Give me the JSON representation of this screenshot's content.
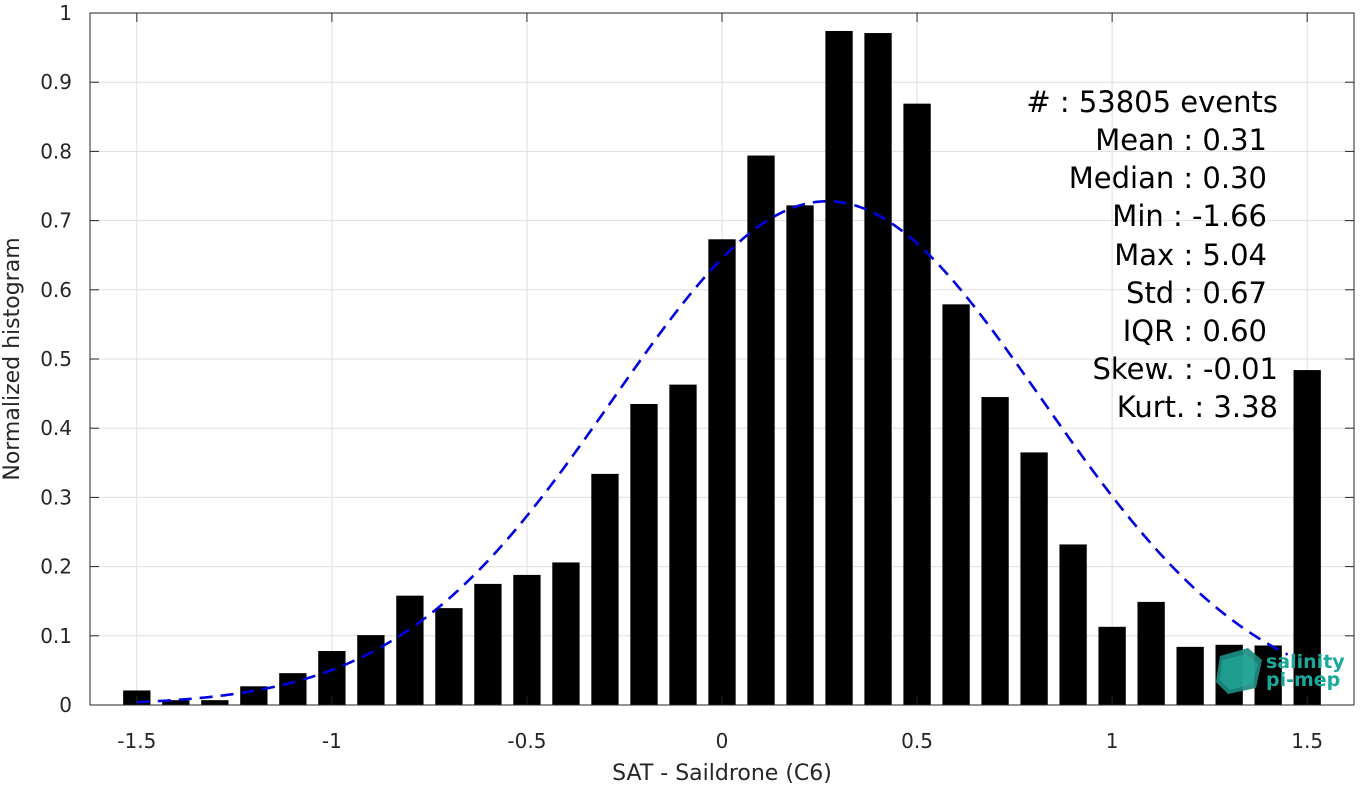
{
  "chart_data": {
    "type": "bar",
    "xlabel": "SAT - Saildrone (C6)",
    "ylabel": "Normalized histogram",
    "xlim": [
      -1.62,
      1.62
    ],
    "ylim": [
      0,
      1
    ],
    "xticks": [
      -1.5,
      -1,
      -0.5,
      0,
      0.5,
      1,
      1.5
    ],
    "xtick_labels": [
      "-1.5",
      "-1",
      "-0.5",
      "0",
      "0.5",
      "1",
      "1.5"
    ],
    "yticks": [
      0,
      0.1,
      0.2,
      0.3,
      0.4,
      0.5,
      0.6,
      0.7,
      0.8,
      0.9,
      1
    ],
    "ytick_labels": [
      "0",
      "0.1",
      "0.2",
      "0.3",
      "0.4",
      "0.5",
      "0.6",
      "0.7",
      "0.8",
      "0.9",
      "1"
    ],
    "grid": true,
    "bar_width": 0.07,
    "bar_color": "#000000",
    "x": [
      -1.5,
      -1.4,
      -1.3,
      -1.2,
      -1.1,
      -1.0,
      -0.9,
      -0.8,
      -0.7,
      -0.6,
      -0.5,
      -0.4,
      -0.3,
      -0.2,
      -0.1,
      0.0,
      0.1,
      0.2,
      0.3,
      0.4,
      0.5,
      0.6,
      0.7,
      0.8,
      0.9,
      1.0,
      1.1,
      1.2,
      1.3,
      1.4,
      1.5
    ],
    "values": [
      0.021,
      0.007,
      0.007,
      0.027,
      0.046,
      0.078,
      0.101,
      0.158,
      0.14,
      0.175,
      0.188,
      0.206,
      0.334,
      0.435,
      0.463,
      0.673,
      0.794,
      0.722,
      0.974,
      0.971,
      0.869,
      0.579,
      0.445,
      0.365,
      0.232,
      0.113,
      0.149,
      0.084,
      0.087,
      0.086,
      0.484
    ],
    "fit_curve": {
      "style": "dashed",
      "color": "#0000e0",
      "mean": 0.27,
      "std": 0.55,
      "peak": 0.728,
      "x_range": [
        -1.5,
        1.45
      ]
    },
    "annotations": [
      "#  : 53805 events",
      "Mean : 0.31",
      "Median : 0.30",
      "Min : -1.66",
      "Max : 5.04",
      "Std : 0.67",
      "IQR : 0.60",
      "Skew. : -0.01",
      "Kurt. : 3.38"
    ]
  },
  "logo": {
    "line1": "salinity",
    "line2": "pi-mep",
    "color": "#1aa89a"
  }
}
